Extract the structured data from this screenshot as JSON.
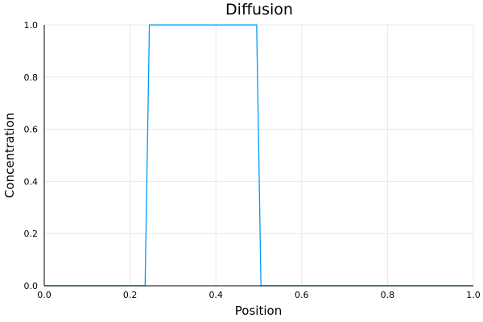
{
  "chart_data": {
    "type": "line",
    "title": "Diffusion",
    "xlabel": "Position",
    "ylabel": "Concentration",
    "xlim": [
      0.0,
      1.0
    ],
    "ylim": [
      0.0,
      1.0
    ],
    "xticks": [
      "0.0",
      "0.2",
      "0.4",
      "0.6",
      "0.8",
      "1.0"
    ],
    "yticks": [
      "0.0",
      "0.2",
      "0.4",
      "0.6",
      "0.8",
      "1.0"
    ],
    "grid": true,
    "legend": "none",
    "series": [
      {
        "color": "#009AFA",
        "x": [
          0.0,
          0.235,
          0.245,
          0.495,
          0.505,
          1.0
        ],
        "y": [
          0.0,
          0.0,
          1.0,
          1.0,
          0.0,
          0.0
        ]
      }
    ]
  }
}
